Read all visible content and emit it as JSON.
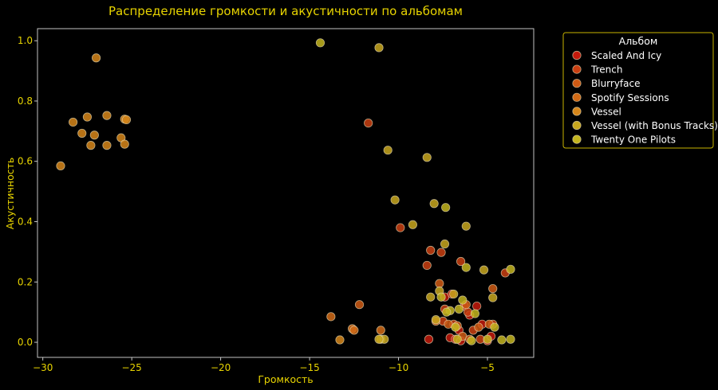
{
  "chart_data": {
    "type": "scatter",
    "title": "Распределение громкости и акустичности по альбомам",
    "xlabel": "Громкость",
    "ylabel": "Акустичность",
    "xlim": [
      -30.3,
      -2.4
    ],
    "ylim": [
      -0.05,
      1.04
    ],
    "xticks": [
      -30,
      -25,
      -20,
      -15,
      -10,
      -5
    ],
    "xtick_labels": [
      "−30",
      "−25",
      "−20",
      "−15",
      "−10",
      "−5"
    ],
    "yticks": [
      0.0,
      0.2,
      0.4,
      0.6,
      0.8,
      1.0
    ],
    "ytick_labels": [
      "0.0",
      "0.2",
      "0.4",
      "0.6",
      "0.8",
      "1.0"
    ],
    "grid": false,
    "legend": {
      "title": "Альбом",
      "placement": "outside-right"
    },
    "series": [
      {
        "name": "Scaled And Icy",
        "color": "#c41a0c",
        "points": [
          [
            -8.3,
            0.01
          ],
          [
            -7.4,
            0.15
          ],
          [
            -7.1,
            0.015
          ],
          [
            -6.8,
            0.01
          ],
          [
            -6.5,
            0.005
          ],
          [
            -6.3,
            0.12
          ],
          [
            -6.0,
            0.09
          ],
          [
            -5.6,
            0.12
          ],
          [
            -5.3,
            0.06
          ],
          [
            -5.0,
            0.005
          ],
          [
            -4.8,
            0.02
          ],
          [
            -7.0,
            0.16
          ],
          [
            -6.6,
            0.04
          ]
        ]
      },
      {
        "name": "Trench",
        "color": "#c93f12",
        "points": [
          [
            -11.7,
            0.727
          ],
          [
            -9.9,
            0.38
          ],
          [
            -8.2,
            0.305
          ],
          [
            -7.6,
            0.298
          ],
          [
            -8.4,
            0.255
          ],
          [
            -6.5,
            0.268
          ],
          [
            -7.4,
            0.11
          ],
          [
            -7.5,
            0.07
          ],
          [
            -6.9,
            0.06
          ],
          [
            -6.1,
            0.1
          ],
          [
            -5.8,
            0.04
          ],
          [
            -5.4,
            0.01
          ],
          [
            -4.7,
            0.06
          ],
          [
            -4.0,
            0.23
          ]
        ]
      },
      {
        "name": "Blurryface",
        "color": "#cf5a14",
        "points": [
          [
            -7.7,
            0.195
          ],
          [
            -7.9,
            0.07
          ],
          [
            -7.2,
            0.06
          ],
          [
            -6.7,
            0.055
          ],
          [
            -6.4,
            0.02
          ],
          [
            -6.0,
            0.01
          ],
          [
            -5.5,
            0.05
          ],
          [
            -4.9,
            0.06
          ],
          [
            -4.7,
            0.178
          ],
          [
            -6.2,
            0.125
          ],
          [
            -12.2,
            0.125
          ]
        ]
      },
      {
        "name": "Spotify Sessions",
        "color": "#d16a16",
        "points": [
          [
            -13.8,
            0.085
          ],
          [
            -12.6,
            0.045
          ],
          [
            -12.5,
            0.04
          ],
          [
            -11.0,
            0.04
          ]
        ]
      },
      {
        "name": "Vessel",
        "color": "#d6861a",
        "points": [
          [
            -27.0,
            0.943
          ],
          [
            -29.0,
            0.585
          ],
          [
            -28.3,
            0.73
          ],
          [
            -27.8,
            0.693
          ],
          [
            -27.5,
            0.747
          ],
          [
            -27.3,
            0.653
          ],
          [
            -27.1,
            0.687
          ],
          [
            -26.4,
            0.752
          ],
          [
            -26.4,
            0.653
          ],
          [
            -25.6,
            0.678
          ],
          [
            -25.4,
            0.657
          ],
          [
            -25.4,
            0.74
          ],
          [
            -25.3,
            0.738
          ],
          [
            -13.3,
            0.008
          ]
        ]
      },
      {
        "name": "Vessel (with Bonus Tracks)",
        "color": "#c8a71e",
        "points": [
          [
            -11.1,
            0.977
          ],
          [
            -10.6,
            0.637
          ],
          [
            -10.2,
            0.472
          ],
          [
            -9.2,
            0.39
          ],
          [
            -8.4,
            0.613
          ],
          [
            -8.0,
            0.46
          ],
          [
            -7.4,
            0.326
          ],
          [
            -6.2,
            0.385
          ],
          [
            -5.2,
            0.24
          ],
          [
            -4.7,
            0.148
          ],
          [
            -7.7,
            0.17
          ],
          [
            -8.2,
            0.15
          ],
          [
            -7.9,
            0.075
          ],
          [
            -6.9,
            0.16
          ],
          [
            -11.0,
            0.01
          ],
          [
            -10.8,
            0.01
          ],
          [
            -11.1,
            0.01
          ]
        ]
      },
      {
        "name": "Twenty One Pilots",
        "color": "#c3b51e",
        "points": [
          [
            -14.4,
            0.993
          ],
          [
            -7.35,
            0.447
          ],
          [
            -6.2,
            0.248
          ],
          [
            -3.7,
            0.242
          ],
          [
            -6.4,
            0.14
          ],
          [
            -7.6,
            0.15
          ],
          [
            -7.1,
            0.105
          ],
          [
            -6.6,
            0.11
          ],
          [
            -5.7,
            0.095
          ],
          [
            -5.9,
            0.005
          ],
          [
            -5.0,
            0.01
          ],
          [
            -4.6,
            0.05
          ],
          [
            -4.2,
            0.008
          ],
          [
            -3.7,
            0.01
          ],
          [
            -6.7,
            0.01
          ],
          [
            -7.3,
            0.1
          ],
          [
            -6.8,
            0.05
          ]
        ]
      }
    ]
  }
}
